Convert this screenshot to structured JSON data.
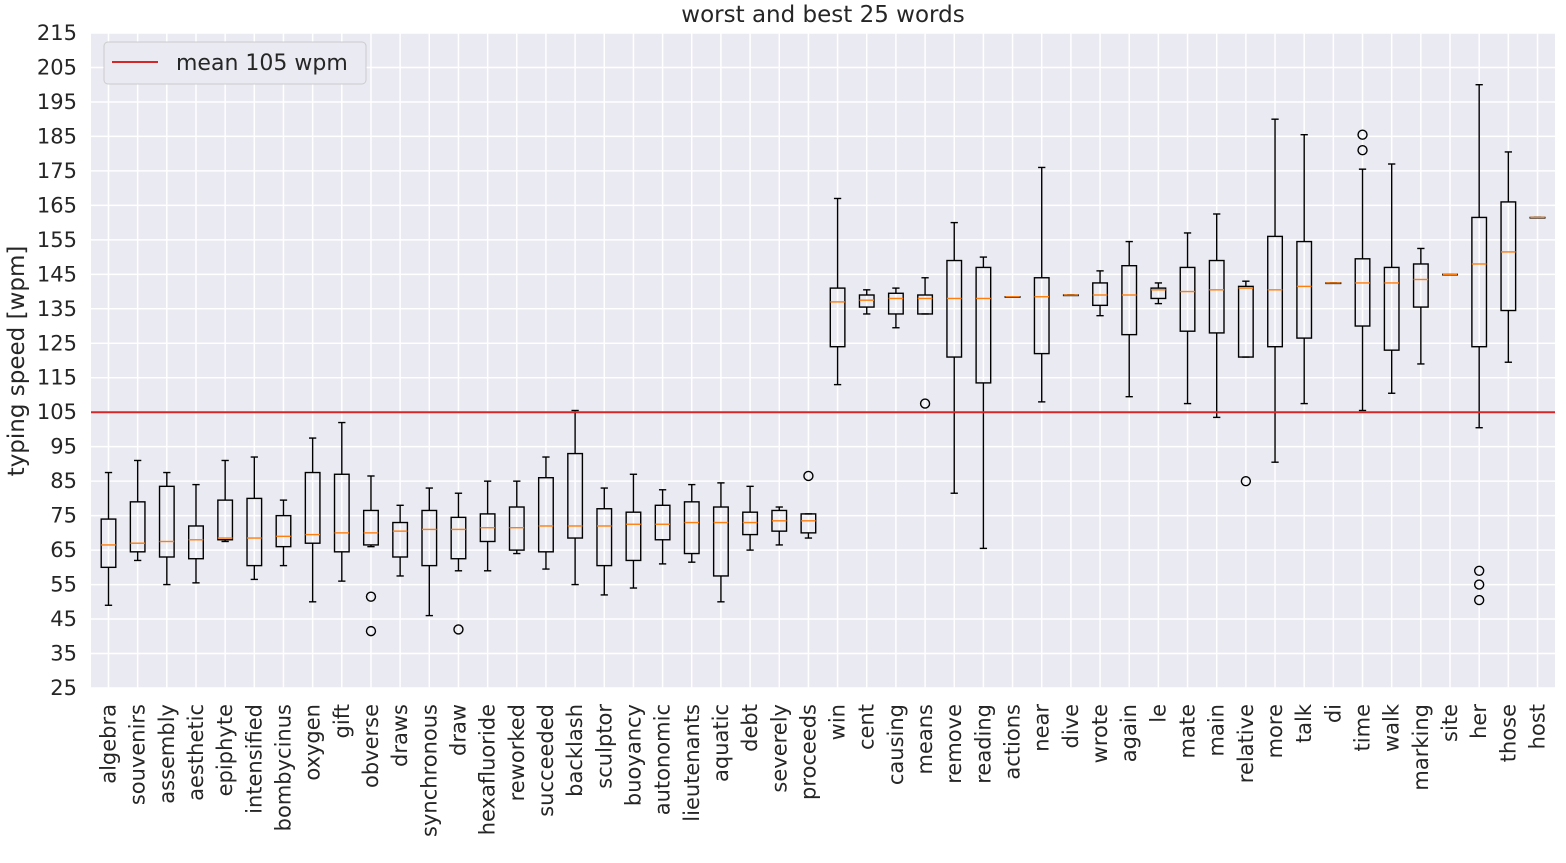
{
  "chart_data": {
    "type": "box",
    "title": "worst and best 25 words",
    "ylabel": "typing speed [wpm]",
    "xlabel": "",
    "ylim": [
      25,
      215
    ],
    "yticks": [
      25,
      35,
      45,
      55,
      65,
      75,
      85,
      95,
      105,
      115,
      125,
      135,
      145,
      155,
      165,
      175,
      185,
      195,
      205,
      215
    ],
    "grid": true,
    "legend": {
      "position": "top-left",
      "entries": [
        "mean 105 wpm"
      ]
    },
    "mean_line": {
      "label": "mean 105 wpm",
      "value": 105,
      "color": "#d62728"
    },
    "colors": {
      "background": "#eaeaf2",
      "grid": "#ffffff",
      "box": "#000000",
      "median": "#ff7f0e"
    },
    "boxes": [
      {
        "word": "algebra",
        "whislo": 49,
        "q1": 60,
        "med": 66.5,
        "q3": 74,
        "whishi": 87.5,
        "fliers": []
      },
      {
        "word": "souvenirs",
        "whislo": 62,
        "q1": 64.5,
        "med": 67,
        "q3": 79,
        "whishi": 91,
        "fliers": []
      },
      {
        "word": "assembly",
        "whislo": 55,
        "q1": 63,
        "med": 67.5,
        "q3": 83.5,
        "whishi": 87.5,
        "fliers": []
      },
      {
        "word": "aesthetic",
        "whislo": 55.5,
        "q1": 62.5,
        "med": 68,
        "q3": 72,
        "whishi": 84,
        "fliers": []
      },
      {
        "word": "epiphyte",
        "whislo": 67.5,
        "q1": 68,
        "med": 68.5,
        "q3": 79.5,
        "whishi": 91,
        "fliers": []
      },
      {
        "word": "intensified",
        "whislo": 56.5,
        "q1": 60.5,
        "med": 68.5,
        "q3": 80,
        "whishi": 92,
        "fliers": []
      },
      {
        "word": "bombycinus",
        "whislo": 60.5,
        "q1": 66,
        "med": 69,
        "q3": 75,
        "whishi": 79.5,
        "fliers": []
      },
      {
        "word": "oxygen",
        "whislo": 50,
        "q1": 67,
        "med": 69.5,
        "q3": 87.5,
        "whishi": 97.5,
        "fliers": []
      },
      {
        "word": "gift",
        "whislo": 56,
        "q1": 64.5,
        "med": 70,
        "q3": 87,
        "whishi": 102,
        "fliers": []
      },
      {
        "word": "obverse",
        "whislo": 66,
        "q1": 66.5,
        "med": 70,
        "q3": 76.5,
        "whishi": 86.5,
        "fliers": [
          51.5,
          41.5
        ]
      },
      {
        "word": "draws",
        "whislo": 57.5,
        "q1": 63,
        "med": 70.5,
        "q3": 73,
        "whishi": 78,
        "fliers": []
      },
      {
        "word": "synchronous",
        "whislo": 46,
        "q1": 60.5,
        "med": 71,
        "q3": 76.5,
        "whishi": 83,
        "fliers": []
      },
      {
        "word": "draw",
        "whislo": 59,
        "q1": 62.5,
        "med": 71,
        "q3": 74.5,
        "whishi": 81.5,
        "fliers": [
          42
        ]
      },
      {
        "word": "hexafluoride",
        "whislo": 59,
        "q1": 67.5,
        "med": 71.5,
        "q3": 75.5,
        "whishi": 85,
        "fliers": []
      },
      {
        "word": "reworked",
        "whislo": 64,
        "q1": 65,
        "med": 71.5,
        "q3": 77.5,
        "whishi": 85,
        "fliers": []
      },
      {
        "word": "succeeded",
        "whislo": 59.5,
        "q1": 64.5,
        "med": 72,
        "q3": 86,
        "whishi": 92,
        "fliers": []
      },
      {
        "word": "backlash",
        "whislo": 55,
        "q1": 68.5,
        "med": 72,
        "q3": 93,
        "whishi": 105.5,
        "fliers": []
      },
      {
        "word": "sculptor",
        "whislo": 52,
        "q1": 60.5,
        "med": 72,
        "q3": 77,
        "whishi": 83,
        "fliers": []
      },
      {
        "word": "buoyancy",
        "whislo": 54,
        "q1": 62,
        "med": 72.5,
        "q3": 76,
        "whishi": 87,
        "fliers": []
      },
      {
        "word": "autonomic",
        "whislo": 61,
        "q1": 68,
        "med": 72.5,
        "q3": 78,
        "whishi": 82.5,
        "fliers": []
      },
      {
        "word": "lieutenants",
        "whislo": 61.5,
        "q1": 64,
        "med": 73,
        "q3": 79,
        "whishi": 84,
        "fliers": []
      },
      {
        "word": "aquatic",
        "whislo": 50,
        "q1": 57.5,
        "med": 73,
        "q3": 77.5,
        "whishi": 84.5,
        "fliers": []
      },
      {
        "word": "debt",
        "whislo": 65,
        "q1": 69.5,
        "med": 73,
        "q3": 76,
        "whishi": 83.5,
        "fliers": []
      },
      {
        "word": "severely",
        "whislo": 66.5,
        "q1": 70.5,
        "med": 73.5,
        "q3": 76.5,
        "whishi": 77.5,
        "fliers": []
      },
      {
        "word": "proceeds",
        "whislo": 68.5,
        "q1": 70,
        "med": 73.5,
        "q3": 75.5,
        "whishi": 75.5,
        "fliers": [
          86.5
        ]
      },
      {
        "word": "win",
        "whislo": 113,
        "q1": 124,
        "med": 137,
        "q3": 141,
        "whishi": 167,
        "fliers": []
      },
      {
        "word": "cent",
        "whislo": 133.5,
        "q1": 135.5,
        "med": 137.5,
        "q3": 139,
        "whishi": 140.5,
        "fliers": []
      },
      {
        "word": "causing",
        "whislo": 129.5,
        "q1": 133.5,
        "med": 138,
        "q3": 139.5,
        "whishi": 141,
        "fliers": []
      },
      {
        "word": "means",
        "whislo": 133.5,
        "q1": 133.5,
        "med": 138,
        "q3": 139,
        "whishi": 144,
        "fliers": [
          107.5
        ]
      },
      {
        "word": "remove",
        "whislo": 81.5,
        "q1": 121,
        "med": 138,
        "q3": 149,
        "whishi": 160,
        "fliers": []
      },
      {
        "word": "reading",
        "whislo": 65.5,
        "q1": 113.5,
        "med": 138,
        "q3": 147,
        "whishi": 150,
        "fliers": []
      },
      {
        "word": "actions",
        "whislo": 138.5,
        "q1": 138.5,
        "med": 138.5,
        "q3": 138.5,
        "whishi": 138.5,
        "fliers": []
      },
      {
        "word": "near",
        "whislo": 108,
        "q1": 122,
        "med": 138.5,
        "q3": 144,
        "whishi": 176,
        "fliers": []
      },
      {
        "word": "dive",
        "whislo": 139,
        "q1": 139,
        "med": 139,
        "q3": 139,
        "whishi": 139,
        "fliers": []
      },
      {
        "word": "wrote",
        "whislo": 133,
        "q1": 136,
        "med": 139,
        "q3": 142.5,
        "whishi": 146,
        "fliers": []
      },
      {
        "word": "again",
        "whislo": 109.5,
        "q1": 127.5,
        "med": 139,
        "q3": 147.5,
        "whishi": 154.5,
        "fliers": []
      },
      {
        "word": "le",
        "whislo": 136.5,
        "q1": 138,
        "med": 140.5,
        "q3": 141,
        "whishi": 142.5,
        "fliers": []
      },
      {
        "word": "mate",
        "whislo": 107.5,
        "q1": 128.5,
        "med": 140,
        "q3": 147,
        "whishi": 157,
        "fliers": []
      },
      {
        "word": "main",
        "whislo": 103.5,
        "q1": 128,
        "med": 140.5,
        "q3": 149,
        "whishi": 162.5,
        "fliers": []
      },
      {
        "word": "relative",
        "whislo": 121,
        "q1": 121,
        "med": 141,
        "q3": 141.5,
        "whishi": 143,
        "fliers": [
          85
        ]
      },
      {
        "word": "more",
        "whislo": 90.5,
        "q1": 124,
        "med": 140.5,
        "q3": 156,
        "whishi": 190,
        "fliers": []
      },
      {
        "word": "talk",
        "whislo": 107.5,
        "q1": 126.5,
        "med": 141.5,
        "q3": 154.5,
        "whishi": 185.5,
        "fliers": []
      },
      {
        "word": "di",
        "whislo": 142.5,
        "q1": 142.5,
        "med": 142.5,
        "q3": 142.5,
        "whishi": 142.5,
        "fliers": []
      },
      {
        "word": "time",
        "whislo": 105.5,
        "q1": 130,
        "med": 142.5,
        "q3": 149.5,
        "whishi": 175.5,
        "fliers": [
          181,
          185.5
        ]
      },
      {
        "word": "walk",
        "whislo": 110.5,
        "q1": 123,
        "med": 142.5,
        "q3": 147,
        "whishi": 177,
        "fliers": []
      },
      {
        "word": "marking",
        "whislo": 119,
        "q1": 135.5,
        "med": 143.5,
        "q3": 148,
        "whishi": 152.5,
        "fliers": []
      },
      {
        "word": "site",
        "whislo": 145,
        "q1": 145,
        "med": 145,
        "q3": 145,
        "whishi": 145,
        "fliers": []
      },
      {
        "word": "her",
        "whislo": 100.5,
        "q1": 124,
        "med": 148,
        "q3": 161.5,
        "whishi": 200,
        "fliers": [
          59,
          55,
          50.5
        ]
      },
      {
        "word": "those",
        "whislo": 119.5,
        "q1": 134.5,
        "med": 151.5,
        "q3": 166,
        "whishi": 180.5,
        "fliers": []
      },
      {
        "word": "host",
        "whislo": 161.5,
        "q1": 161.5,
        "med": 161.5,
        "q3": 161.5,
        "whishi": 161.5,
        "fliers": []
      }
    ]
  }
}
